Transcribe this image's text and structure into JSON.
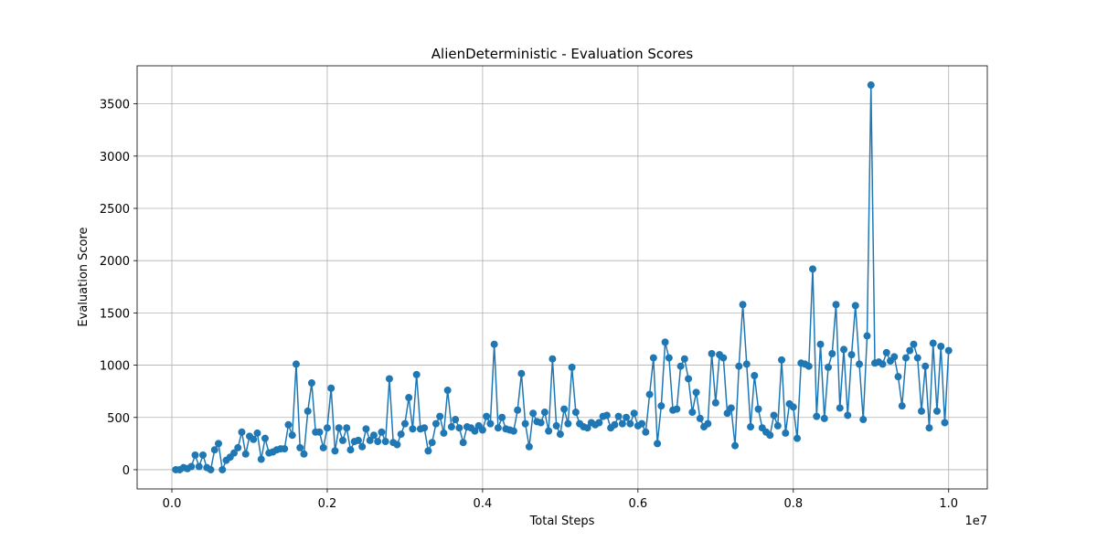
{
  "chart_data": {
    "type": "line",
    "title": "AlienDeterministic - Evaluation Scores",
    "x_label": "Total Steps",
    "y_label": "Evaluation Score",
    "x_offset_label": "1e7",
    "xlim": [
      -447500,
      10497500
    ],
    "ylim": [
      -184,
      3864
    ],
    "xticks": [
      {
        "value": 0,
        "label": "0.0"
      },
      {
        "value": 2000000,
        "label": "0.2"
      },
      {
        "value": 4000000,
        "label": "0.4"
      },
      {
        "value": 6000000,
        "label": "0.6"
      },
      {
        "value": 8000000,
        "label": "0.8"
      },
      {
        "value": 10000000,
        "label": "1.0"
      }
    ],
    "yticks": [
      0,
      500,
      1000,
      1500,
      2000,
      2500,
      3000,
      3500
    ],
    "grid": true,
    "x": [
      50000,
      100000,
      150000,
      200000,
      250000,
      300000,
      350000,
      400000,
      450000,
      500000,
      550000,
      600000,
      650000,
      700000,
      750000,
      800000,
      850000,
      900000,
      950000,
      1000000,
      1050000,
      1100000,
      1150000,
      1200000,
      1250000,
      1300000,
      1350000,
      1400000,
      1450000,
      1500000,
      1550000,
      1600000,
      1650000,
      1700000,
      1750000,
      1800000,
      1850000,
      1900000,
      1950000,
      2000000,
      2050000,
      2100000,
      2150000,
      2200000,
      2250000,
      2300000,
      2350000,
      2400000,
      2450000,
      2500000,
      2550000,
      2600000,
      2650000,
      2700000,
      2750000,
      2800000,
      2850000,
      2900000,
      2950000,
      3000000,
      3050000,
      3100000,
      3150000,
      3200000,
      3250000,
      3300000,
      3350000,
      3400000,
      3450000,
      3500000,
      3550000,
      3600000,
      3650000,
      3700000,
      3750000,
      3800000,
      3850000,
      3900000,
      3950000,
      4000000,
      4050000,
      4100000,
      4150000,
      4200000,
      4250000,
      4300000,
      4350000,
      4400000,
      4450000,
      4500000,
      4550000,
      4600000,
      4650000,
      4700000,
      4750000,
      4800000,
      4850000,
      4900000,
      4950000,
      5000000,
      5050000,
      5100000,
      5150000,
      5200000,
      5250000,
      5300000,
      5350000,
      5400000,
      5450000,
      5500000,
      5550000,
      5600000,
      5650000,
      5700000,
      5750000,
      5800000,
      5850000,
      5900000,
      5950000,
      6000000,
      6050000,
      6100000,
      6150000,
      6200000,
      6250000,
      6300000,
      6350000,
      6400000,
      6450000,
      6500000,
      6550000,
      6600000,
      6650000,
      6700000,
      6750000,
      6800000,
      6850000,
      6900000,
      6950000,
      7000000,
      7050000,
      7100000,
      7150000,
      7200000,
      7250000,
      7300000,
      7350000,
      7400000,
      7450000,
      7500000,
      7550000,
      7600000,
      7650000,
      7700000,
      7750000,
      7800000,
      7850000,
      7900000,
      7950000,
      8000000,
      8050000,
      8100000,
      8150000,
      8200000,
      8250000,
      8300000,
      8350000,
      8400000,
      8450000,
      8500000,
      8550000,
      8600000,
      8650000,
      8700000,
      8750000,
      8800000,
      8850000,
      8900000,
      8950000,
      9000000,
      9050000,
      9100000,
      9150000,
      9200000,
      9250000,
      9300000,
      9350000,
      9400000,
      9450000,
      9500000,
      9550000,
      9600000,
      9650000,
      9700000,
      9750000,
      9800000,
      9850000,
      9900000,
      9950000,
      10000000
    ],
    "series": [
      {
        "color": "#1f77b4",
        "values": [
          0,
          0,
          20,
          10,
          30,
          140,
          30,
          140,
          20,
          0,
          190,
          250,
          0,
          90,
          120,
          160,
          210,
          360,
          150,
          320,
          290,
          350,
          100,
          300,
          160,
          170,
          190,
          200,
          200,
          430,
          330,
          1010,
          210,
          150,
          560,
          830,
          360,
          360,
          210,
          400,
          780,
          180,
          400,
          280,
          400,
          190,
          270,
          280,
          220,
          390,
          280,
          330,
          270,
          360,
          270,
          870,
          260,
          240,
          340,
          440,
          690,
          390,
          910,
          390,
          400,
          180,
          260,
          440,
          510,
          350,
          760,
          410,
          480,
          400,
          260,
          410,
          400,
          370,
          420,
          380,
          510,
          440,
          1200,
          400,
          500,
          390,
          380,
          370,
          570,
          920,
          440,
          220,
          540,
          460,
          450,
          550,
          370,
          1060,
          420,
          340,
          580,
          440,
          980,
          550,
          440,
          410,
          400,
          450,
          430,
          450,
          510,
          520,
          400,
          430,
          510,
          440,
          500,
          440,
          540,
          420,
          440,
          360,
          720,
          1070,
          250,
          610,
          1220,
          1070,
          570,
          580,
          990,
          1060,
          870,
          550,
          740,
          490,
          410,
          440,
          1110,
          640,
          1100,
          1070,
          540,
          590,
          230,
          990,
          1580,
          1010,
          410,
          900,
          580,
          400,
          360,
          330,
          520,
          420,
          1050,
          350,
          630,
          600,
          300,
          1020,
          1010,
          990,
          1920,
          510,
          1200,
          490,
          980,
          1110,
          1580,
          590,
          1150,
          520,
          1100,
          1570,
          1010,
          480,
          1280,
          3680,
          1020,
          1030,
          1010,
          1120,
          1040,
          1080,
          890,
          610,
          1070,
          1140,
          1200,
          1070,
          560,
          990,
          400,
          1210,
          560,
          1180,
          450,
          1140
        ]
      }
    ]
  }
}
